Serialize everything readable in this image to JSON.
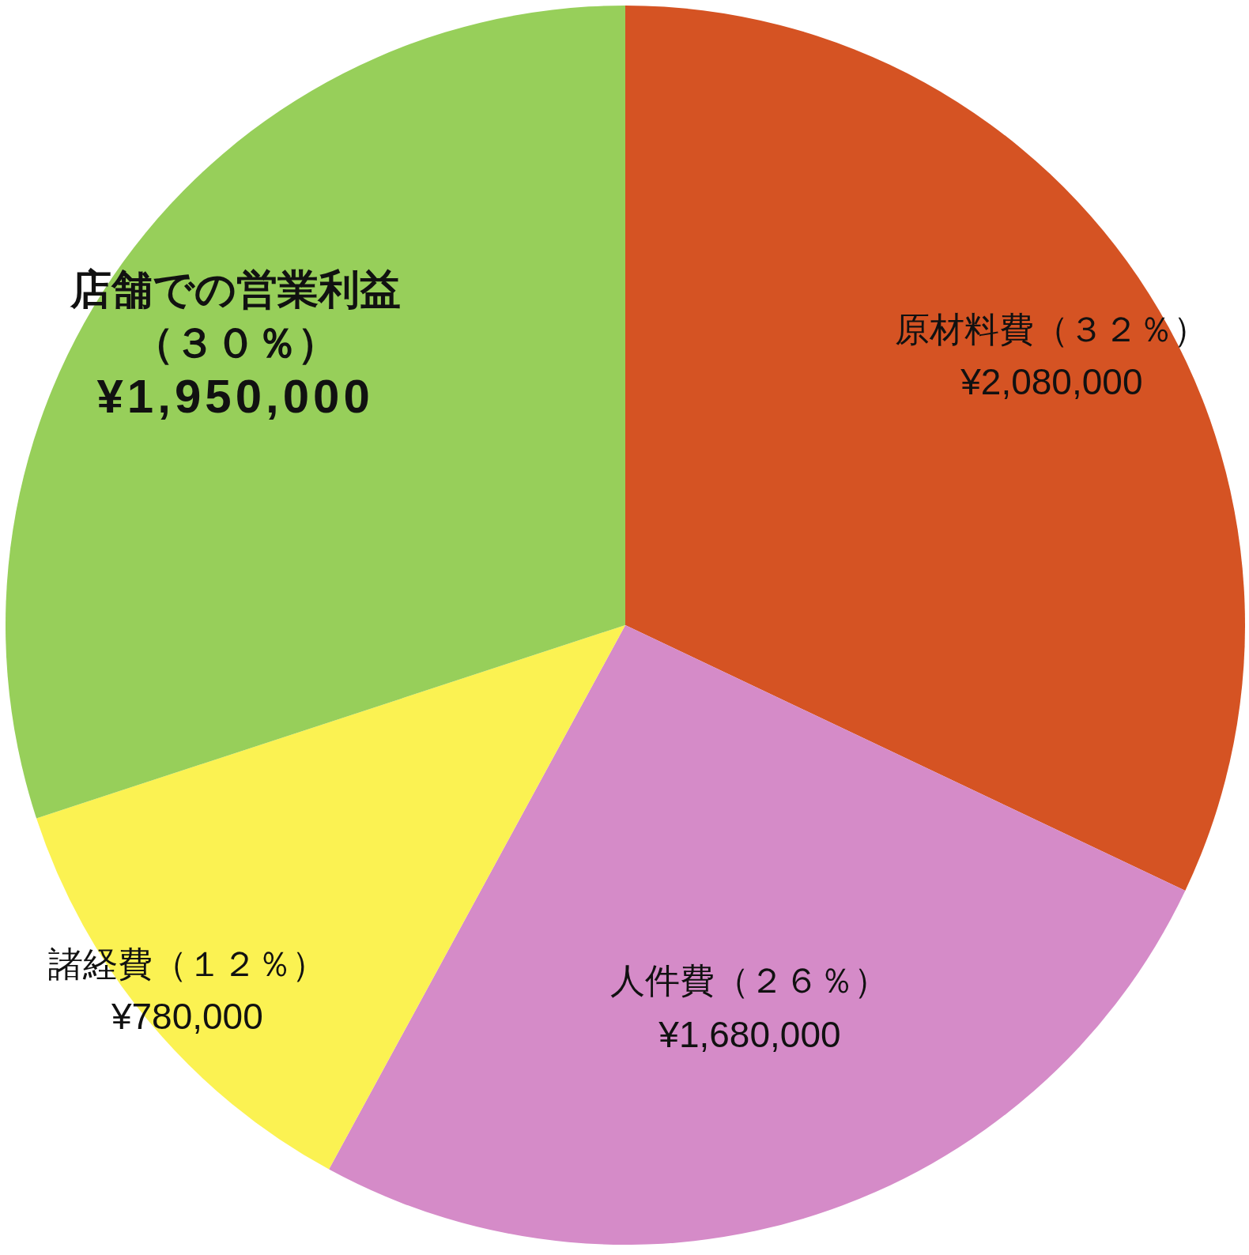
{
  "chart_data": {
    "type": "pie",
    "categories": [
      "原材料費",
      "人件費",
      "諸経費",
      "店舗での営業利益"
    ],
    "values": [
      2080000,
      1680000,
      780000,
      1950000
    ],
    "colors": [
      "#d55323",
      "#d58bc8",
      "#fbf252",
      "#97cf5a"
    ],
    "value_labels": [
      "（３２％）\n¥2,080,000",
      "（２６％）\n¥1,680,000",
      "（１２％）\n¥780,000",
      "\n（３０％）\n¥1,950,000"
    ]
  }
}
